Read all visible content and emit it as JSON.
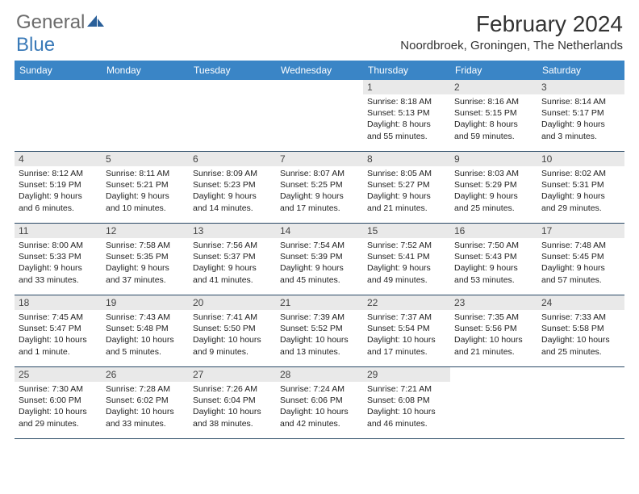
{
  "brand": {
    "part1": "General",
    "part2": "Blue"
  },
  "title": "February 2024",
  "location": "Noordbroek, Groningen, The Netherlands",
  "colors": {
    "header_bar": "#3a85c6",
    "daynum_bg": "#e9e9e9",
    "week_border": "#2a4a66",
    "logo_grey": "#6b6b6b",
    "logo_blue": "#3a7ab8"
  },
  "weekdays": [
    "Sunday",
    "Monday",
    "Tuesday",
    "Wednesday",
    "Thursday",
    "Friday",
    "Saturday"
  ],
  "weeks": [
    [
      {
        "n": "",
        "sunrise": "",
        "sunset": "",
        "daylight": ""
      },
      {
        "n": "",
        "sunrise": "",
        "sunset": "",
        "daylight": ""
      },
      {
        "n": "",
        "sunrise": "",
        "sunset": "",
        "daylight": ""
      },
      {
        "n": "",
        "sunrise": "",
        "sunset": "",
        "daylight": ""
      },
      {
        "n": "1",
        "sunrise": "Sunrise: 8:18 AM",
        "sunset": "Sunset: 5:13 PM",
        "daylight": "Daylight: 8 hours and 55 minutes."
      },
      {
        "n": "2",
        "sunrise": "Sunrise: 8:16 AM",
        "sunset": "Sunset: 5:15 PM",
        "daylight": "Daylight: 8 hours and 59 minutes."
      },
      {
        "n": "3",
        "sunrise": "Sunrise: 8:14 AM",
        "sunset": "Sunset: 5:17 PM",
        "daylight": "Daylight: 9 hours and 3 minutes."
      }
    ],
    [
      {
        "n": "4",
        "sunrise": "Sunrise: 8:12 AM",
        "sunset": "Sunset: 5:19 PM",
        "daylight": "Daylight: 9 hours and 6 minutes."
      },
      {
        "n": "5",
        "sunrise": "Sunrise: 8:11 AM",
        "sunset": "Sunset: 5:21 PM",
        "daylight": "Daylight: 9 hours and 10 minutes."
      },
      {
        "n": "6",
        "sunrise": "Sunrise: 8:09 AM",
        "sunset": "Sunset: 5:23 PM",
        "daylight": "Daylight: 9 hours and 14 minutes."
      },
      {
        "n": "7",
        "sunrise": "Sunrise: 8:07 AM",
        "sunset": "Sunset: 5:25 PM",
        "daylight": "Daylight: 9 hours and 17 minutes."
      },
      {
        "n": "8",
        "sunrise": "Sunrise: 8:05 AM",
        "sunset": "Sunset: 5:27 PM",
        "daylight": "Daylight: 9 hours and 21 minutes."
      },
      {
        "n": "9",
        "sunrise": "Sunrise: 8:03 AM",
        "sunset": "Sunset: 5:29 PM",
        "daylight": "Daylight: 9 hours and 25 minutes."
      },
      {
        "n": "10",
        "sunrise": "Sunrise: 8:02 AM",
        "sunset": "Sunset: 5:31 PM",
        "daylight": "Daylight: 9 hours and 29 minutes."
      }
    ],
    [
      {
        "n": "11",
        "sunrise": "Sunrise: 8:00 AM",
        "sunset": "Sunset: 5:33 PM",
        "daylight": "Daylight: 9 hours and 33 minutes."
      },
      {
        "n": "12",
        "sunrise": "Sunrise: 7:58 AM",
        "sunset": "Sunset: 5:35 PM",
        "daylight": "Daylight: 9 hours and 37 minutes."
      },
      {
        "n": "13",
        "sunrise": "Sunrise: 7:56 AM",
        "sunset": "Sunset: 5:37 PM",
        "daylight": "Daylight: 9 hours and 41 minutes."
      },
      {
        "n": "14",
        "sunrise": "Sunrise: 7:54 AM",
        "sunset": "Sunset: 5:39 PM",
        "daylight": "Daylight: 9 hours and 45 minutes."
      },
      {
        "n": "15",
        "sunrise": "Sunrise: 7:52 AM",
        "sunset": "Sunset: 5:41 PM",
        "daylight": "Daylight: 9 hours and 49 minutes."
      },
      {
        "n": "16",
        "sunrise": "Sunrise: 7:50 AM",
        "sunset": "Sunset: 5:43 PM",
        "daylight": "Daylight: 9 hours and 53 minutes."
      },
      {
        "n": "17",
        "sunrise": "Sunrise: 7:48 AM",
        "sunset": "Sunset: 5:45 PM",
        "daylight": "Daylight: 9 hours and 57 minutes."
      }
    ],
    [
      {
        "n": "18",
        "sunrise": "Sunrise: 7:45 AM",
        "sunset": "Sunset: 5:47 PM",
        "daylight": "Daylight: 10 hours and 1 minute."
      },
      {
        "n": "19",
        "sunrise": "Sunrise: 7:43 AM",
        "sunset": "Sunset: 5:48 PM",
        "daylight": "Daylight: 10 hours and 5 minutes."
      },
      {
        "n": "20",
        "sunrise": "Sunrise: 7:41 AM",
        "sunset": "Sunset: 5:50 PM",
        "daylight": "Daylight: 10 hours and 9 minutes."
      },
      {
        "n": "21",
        "sunrise": "Sunrise: 7:39 AM",
        "sunset": "Sunset: 5:52 PM",
        "daylight": "Daylight: 10 hours and 13 minutes."
      },
      {
        "n": "22",
        "sunrise": "Sunrise: 7:37 AM",
        "sunset": "Sunset: 5:54 PM",
        "daylight": "Daylight: 10 hours and 17 minutes."
      },
      {
        "n": "23",
        "sunrise": "Sunrise: 7:35 AM",
        "sunset": "Sunset: 5:56 PM",
        "daylight": "Daylight: 10 hours and 21 minutes."
      },
      {
        "n": "24",
        "sunrise": "Sunrise: 7:33 AM",
        "sunset": "Sunset: 5:58 PM",
        "daylight": "Daylight: 10 hours and 25 minutes."
      }
    ],
    [
      {
        "n": "25",
        "sunrise": "Sunrise: 7:30 AM",
        "sunset": "Sunset: 6:00 PM",
        "daylight": "Daylight: 10 hours and 29 minutes."
      },
      {
        "n": "26",
        "sunrise": "Sunrise: 7:28 AM",
        "sunset": "Sunset: 6:02 PM",
        "daylight": "Daylight: 10 hours and 33 minutes."
      },
      {
        "n": "27",
        "sunrise": "Sunrise: 7:26 AM",
        "sunset": "Sunset: 6:04 PM",
        "daylight": "Daylight: 10 hours and 38 minutes."
      },
      {
        "n": "28",
        "sunrise": "Sunrise: 7:24 AM",
        "sunset": "Sunset: 6:06 PM",
        "daylight": "Daylight: 10 hours and 42 minutes."
      },
      {
        "n": "29",
        "sunrise": "Sunrise: 7:21 AM",
        "sunset": "Sunset: 6:08 PM",
        "daylight": "Daylight: 10 hours and 46 minutes."
      },
      {
        "n": "",
        "sunrise": "",
        "sunset": "",
        "daylight": ""
      },
      {
        "n": "",
        "sunrise": "",
        "sunset": "",
        "daylight": ""
      }
    ]
  ]
}
